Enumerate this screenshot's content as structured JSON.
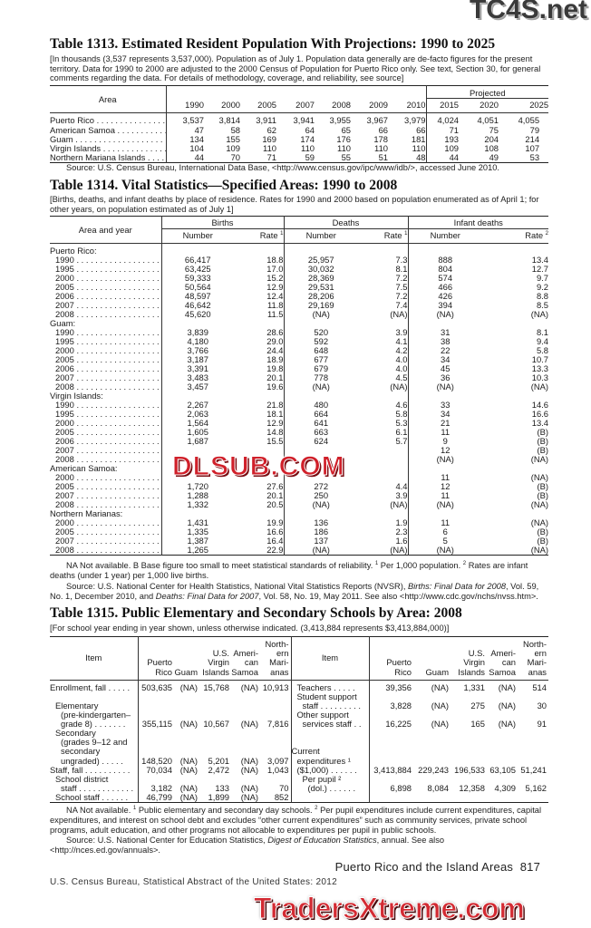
{
  "watermarks": {
    "top": "TC4S.net",
    "middle": "DLSUB.COM",
    "bottom": "TradersXtreme.com"
  },
  "t1313": {
    "title": "Table 1313. Estimated Resident Population With Projections: 1990 to 2025",
    "intro": "[In thousands (3,537 represents 3,537,000). Population as of July 1. Population data generally are de-facto figures for the present territory. Data for 1990 to 2000 are adjusted to the 2000 Census of Population for Puerto Rico only. See text, Section 30, for general comments regarding the data. For details of methodology, coverage, and reliability, see source]",
    "area_header": "Area",
    "projected_header": "Projected",
    "years": [
      "1990",
      "2000",
      "2005",
      "2007",
      "2008",
      "2009",
      "2010",
      "2015",
      "2020",
      "2025"
    ],
    "rows": [
      {
        "area": "Puerto Rico",
        "values": [
          "3,537",
          "3,814",
          "3,911",
          "3,941",
          "3,955",
          "3,967",
          "3,979",
          "4,024",
          "4,051",
          "4,055"
        ]
      },
      {
        "area": "American Samoa",
        "values": [
          "47",
          "58",
          "62",
          "64",
          "65",
          "66",
          "66",
          "71",
          "75",
          "79"
        ]
      },
      {
        "area": "Guam",
        "values": [
          "134",
          "155",
          "169",
          "174",
          "176",
          "178",
          "181",
          "193",
          "204",
          "214"
        ]
      },
      {
        "area": "Virgin Islands",
        "values": [
          "104",
          "109",
          "110",
          "110",
          "110",
          "110",
          "110",
          "109",
          "108",
          "107"
        ]
      },
      {
        "area": "Northern Mariana Islands",
        "values": [
          "44",
          "70",
          "71",
          "59",
          "55",
          "51",
          "48",
          "44",
          "49",
          "53"
        ]
      }
    ],
    "source": "Source: U.S. Census Bureau, International Data Base, <http://www.census.gov/ipc/www/idb/>, accessed June 2010."
  },
  "t1314": {
    "title": "Table 1314. Vital Statistics—Specified Areas: 1990 to 2008",
    "intro": "[Births, deaths, and infant deaths by place of residence. Rates for 1990 and 2000 based on population enumerated as of April 1; for other years, on population estimated as of July 1]",
    "area_header": "Area and year",
    "groups_header": [
      "Births",
      "Deaths",
      "Infant deaths"
    ],
    "sub_header": [
      {
        "label": "Number"
      },
      {
        "label": "Rate",
        "sup": "1"
      },
      {
        "label": "Number"
      },
      {
        "label": "Rate",
        "sup": "1"
      },
      {
        "label": "Number"
      },
      {
        "label": "Rate",
        "sup": "2"
      }
    ],
    "groups": [
      {
        "name": "Puerto Rico:",
        "rows": [
          {
            "year": "1990",
            "values": [
              "66,417",
              "18.8",
              "25,957",
              "7.3",
              "888",
              "13.4"
            ]
          },
          {
            "year": "1995",
            "values": [
              "63,425",
              "17.0",
              "30,032",
              "8.1",
              "804",
              "12.7"
            ]
          },
          {
            "year": "2000",
            "values": [
              "59,333",
              "15.2",
              "28,369",
              "7.2",
              "574",
              "9.7"
            ]
          },
          {
            "year": "2005",
            "values": [
              "50,564",
              "12.9",
              "29,531",
              "7.5",
              "466",
              "9.2"
            ]
          },
          {
            "year": "2006",
            "values": [
              "48,597",
              "12.4",
              "28,206",
              "7.2",
              "426",
              "8.8"
            ]
          },
          {
            "year": "2007",
            "values": [
              "46,642",
              "11.8",
              "29,169",
              "7.4",
              "394",
              "8.5"
            ]
          },
          {
            "year": "2008",
            "values": [
              "45,620",
              "11.5",
              "(NA)",
              "(NA)",
              "(NA)",
              "(NA)"
            ]
          }
        ]
      },
      {
        "name": "Guam:",
        "rows": [
          {
            "year": "1990",
            "values": [
              "3,839",
              "28.6",
              "520",
              "3.9",
              "31",
              "8.1"
            ]
          },
          {
            "year": "1995",
            "values": [
              "4,180",
              "29.0",
              "592",
              "4.1",
              "38",
              "9.4"
            ]
          },
          {
            "year": "2000",
            "values": [
              "3,766",
              "24.4",
              "648",
              "4.2",
              "22",
              "5.8"
            ]
          },
          {
            "year": "2005",
            "values": [
              "3,187",
              "18.9",
              "677",
              "4.0",
              "34",
              "10.7"
            ]
          },
          {
            "year": "2006",
            "values": [
              "3,391",
              "19.8",
              "679",
              "4.0",
              "45",
              "13.3"
            ]
          },
          {
            "year": "2007",
            "values": [
              "3,483",
              "20.1",
              "778",
              "4.5",
              "36",
              "10.3"
            ]
          },
          {
            "year": "2008",
            "values": [
              "3,457",
              "19.6",
              "(NA)",
              "(NA)",
              "(NA)",
              "(NA)"
            ]
          }
        ]
      },
      {
        "name": "Virgin Islands:",
        "rows": [
          {
            "year": "1990",
            "values": [
              "2,267",
              "21.8",
              "480",
              "4.6",
              "33",
              "14.6"
            ]
          },
          {
            "year": "1995",
            "values": [
              "2,063",
              "18.1",
              "664",
              "5.8",
              "34",
              "16.6"
            ]
          },
          {
            "year": "2000",
            "values": [
              "1,564",
              "12.9",
              "641",
              "5.3",
              "21",
              "13.4"
            ]
          },
          {
            "year": "2005",
            "values": [
              "1,605",
              "14.8",
              "663",
              "6.1",
              "11",
              "(B)"
            ]
          },
          {
            "year": "2006",
            "values": [
              "1,687",
              "15.5",
              "624",
              "5.7",
              "9",
              "(B)"
            ]
          },
          {
            "year": "2007",
            "values": [
              "",
              "",
              "",
              "",
              "12",
              "(B)"
            ]
          },
          {
            "year": "2008",
            "values": [
              "",
              "",
              "",
              "",
              "(NA)",
              "(NA)"
            ]
          }
        ]
      },
      {
        "name": "American Samoa:",
        "rows": [
          {
            "year": "2000",
            "values": [
              "",
              "",
              "",
              "",
              "11",
              "(NA)"
            ]
          },
          {
            "year": "2005",
            "values": [
              "1,720",
              "27.6",
              "272",
              "4.4",
              "12",
              "(B)"
            ]
          },
          {
            "year": "2007",
            "values": [
              "1,288",
              "20.1",
              "250",
              "3.9",
              "11",
              "(B)"
            ]
          },
          {
            "year": "2008",
            "values": [
              "1,332",
              "20.5",
              "(NA)",
              "(NA)",
              "(NA)",
              "(NA)"
            ]
          }
        ]
      },
      {
        "name": "Northern Marianas:",
        "rows": [
          {
            "year": "2000",
            "values": [
              "1,431",
              "19.9",
              "136",
              "1.9",
              "11",
              "(NA)"
            ]
          },
          {
            "year": "2005",
            "values": [
              "1,335",
              "16.6",
              "186",
              "2.3",
              "6",
              "(B)"
            ]
          },
          {
            "year": "2007",
            "values": [
              "1,387",
              "16.4",
              "137",
              "1.6",
              "5",
              "(B)"
            ]
          },
          {
            "year": "2008",
            "values": [
              "1,265",
              "22.9",
              "(NA)",
              "(NA)",
              "(NA)",
              "(NA)"
            ]
          }
        ]
      }
    ],
    "notes": [
      {
        "text": "NA Not available. B Base figure too small to meet statistical standards of reliability. "
      },
      {
        "text": "1",
        "sup": true
      },
      {
        "text": " Per 1,000 population. "
      },
      {
        "text": "2",
        "sup": true
      },
      {
        "text": " Rates are infant deaths (under 1 year) per 1,000 live births."
      }
    ],
    "source": [
      {
        "text": "Source: U.S. National Center for Health Statistics, National Vital Statistics Reports (NVSR), "
      },
      {
        "text": "Births: Final Data for 2008",
        "italic": true
      },
      {
        "text": ", Vol. 59, No. 1, December 2010, and "
      },
      {
        "text": "Deaths: Final Data for 2007",
        "italic": true
      },
      {
        "text": ", Vol. 58, No. 19, May 2011. See also <http://www.cdc.gov/nchs/nvss.htm>."
      }
    ]
  },
  "t1315": {
    "title": "Table 1315. Public Elementary and Secondary Schools by Area: 2008",
    "intro": "[For school year ending in year shown, unless otherwise indicated. (3,413,884 represents $3,413,884,000)]",
    "item_header": "Item",
    "col_headers": [
      [
        "",
        "",
        "Puerto",
        "Rico"
      ],
      [
        "",
        "",
        "",
        "Guam"
      ],
      [
        "",
        "U.S.",
        "Virgin",
        "Islands"
      ],
      [
        "",
        "Ameri-",
        "can",
        "Samoa"
      ],
      [
        "North-",
        "ern",
        "Mari-",
        "anas"
      ]
    ],
    "left_rows": [
      {
        "lines": [
          "Enrollment, fall . . . . ."
        ],
        "level": 0,
        "values": [
          "503,635",
          "(NA)",
          "15,768",
          "(NA)",
          "10,913"
        ]
      },
      {
        "lines": [
          ""
        ],
        "level": 0,
        "values": null
      },
      {
        "lines": [
          "Elementary",
          "(pre-kindergarten–",
          "grade 8) . . . . . . ."
        ],
        "level": 1,
        "values": [
          "355,115",
          "(NA)",
          "10,567",
          "(NA)",
          "7,816"
        ]
      },
      {
        "lines": [
          "Secondary",
          "(grades 9–12 and",
          "secondary",
          "ungraded) . . . . ."
        ],
        "level": 1,
        "values": [
          "148,520",
          "(NA)",
          "5,201",
          "(NA)",
          "3,097"
        ]
      },
      {
        "lines": [
          "Staff, fall . . . . . . . . . ."
        ],
        "level": 0,
        "values": [
          "70,034",
          "(NA)",
          "2,472",
          "(NA)",
          "1,043"
        ]
      },
      {
        "lines": [
          "School district",
          "staff . . . . . . . . . . . ."
        ],
        "level": 1,
        "values": [
          "3,182",
          "(NA)",
          "133",
          "(NA)",
          "70"
        ]
      },
      {
        "lines": [
          "School staff . . . . . ."
        ],
        "level": 1,
        "values": [
          "46,799",
          "(NA)",
          "1,899",
          "(NA)",
          "852"
        ]
      }
    ],
    "right_rows": [
      {
        "lines": [
          "Teachers . . . . ."
        ],
        "level": 1,
        "values": [
          "39,356",
          "(NA)",
          "1,331",
          "(NA)",
          "514"
        ]
      },
      {
        "lines": [
          "Student support",
          "staff . . . . . . . . ."
        ],
        "level": 1,
        "values": [
          "3,828",
          "(NA)",
          "275",
          "(NA)",
          "30"
        ]
      },
      {
        "lines": [
          "Other support",
          "services staff . ."
        ],
        "level": 1,
        "values": [
          "16,225",
          "(NA)",
          "165",
          "(NA)",
          "91"
        ]
      },
      {
        "lines": [
          "",
          ""
        ],
        "level": 0,
        "values": null
      },
      {
        "lines": [
          "Current",
          "expenditures ¹",
          "($1,000) . . . . . ."
        ],
        "level": 0,
        "values": [
          "3,413,884",
          "229,243",
          "196,533",
          "63,105",
          "51,241"
        ]
      },
      {
        "lines": [
          "Per pupil ²",
          "(dol.) . . . . . ."
        ],
        "level": 2,
        "values": [
          "6,898",
          "8,084",
          "12,358",
          "4,309",
          "5,162"
        ]
      },
      {
        "lines": [
          ""
        ],
        "level": 0,
        "values": null
      }
    ],
    "notes": [
      {
        "text": "NA Not available. "
      },
      {
        "text": "1",
        "sup": true
      },
      {
        "text": " Public elementary and secondary day schools. "
      },
      {
        "text": "2",
        "sup": true
      },
      {
        "text": " Per pupil expenditures include current expenditures, capital expenditures, and interest  on school debt and excludes “other current expenditures” such as community services, private school programs, adult education, and other  programs not allocable to expenditures per pupil in public schools."
      }
    ],
    "source": [
      {
        "text": "Source: U.S. National Center for Education Statistics, "
      },
      {
        "text": "Digest of Education Statistics",
        "italic": true
      },
      {
        "text": ", annual. See also <http://nces.ed.gov/annuals>."
      }
    ]
  },
  "footer": {
    "section": "Puerto Rico and the Island Areas",
    "page_number": "817",
    "publication": "U.S. Census Bureau, Statistical Abstract of the United States: 2012"
  }
}
